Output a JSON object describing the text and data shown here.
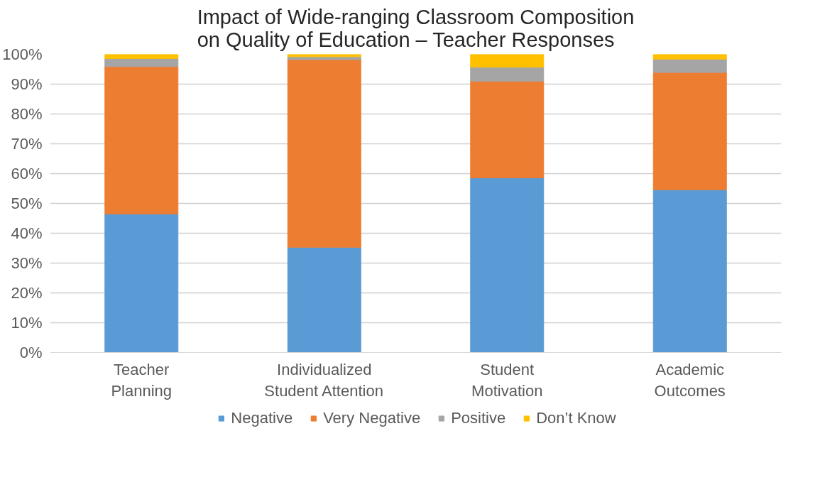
{
  "chart_data": {
    "type": "bar",
    "stacked": true,
    "title": "Impact of Wide-ranging Classroom Composition\non Quality of Education – Teacher Responses",
    "categories": [
      "Teacher Planning",
      "Individualized Student Attention",
      "Student Motivation",
      "Academic Outcomes"
    ],
    "series": [
      {
        "name": "Negative",
        "color": "#5b9bd5",
        "values": [
          46.5,
          35.3,
          58.6,
          54.6
        ]
      },
      {
        "name": "Very Negative",
        "color": "#ed7d31",
        "values": [
          49.4,
          62.9,
          32.4,
          39.3
        ]
      },
      {
        "name": "Positive",
        "color": "#a5a5a5",
        "values": [
          2.7,
          1.0,
          4.7,
          4.5
        ]
      },
      {
        "name": "Don’t Know",
        "color": "#ffc000",
        "values": [
          1.4,
          0.8,
          4.3,
          1.6
        ]
      }
    ],
    "ylim": [
      0,
      100
    ],
    "yticks": [
      {
        "value": 0,
        "label": "0%"
      },
      {
        "value": 10,
        "label": "10%"
      },
      {
        "value": 20,
        "label": "20%"
      },
      {
        "value": 30,
        "label": "30%"
      },
      {
        "value": 40,
        "label": "40%"
      },
      {
        "value": 50,
        "label": "50%"
      },
      {
        "value": 60,
        "label": "60%"
      },
      {
        "value": 70,
        "label": "70%"
      },
      {
        "value": 80,
        "label": "80%"
      },
      {
        "value": 90,
        "label": "90%"
      },
      {
        "value": 100,
        "label": "100%"
      }
    ],
    "grid": "y",
    "legend": "bottom"
  }
}
